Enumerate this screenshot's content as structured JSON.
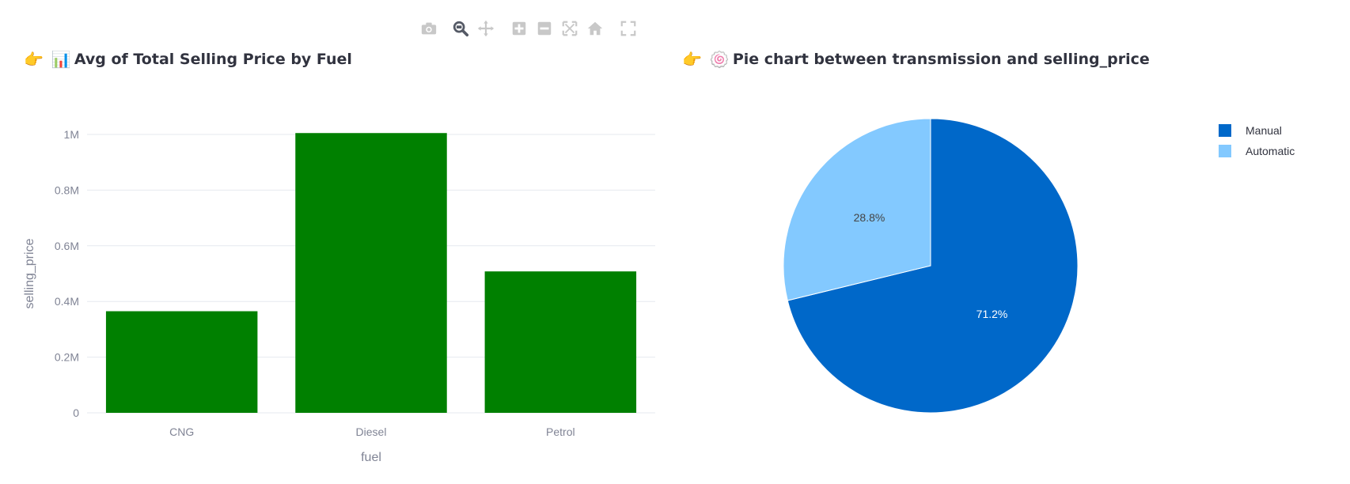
{
  "toolbar": {
    "icons": [
      "camera-icon",
      "zoom-icon",
      "pan-icon",
      "zoom-in-icon",
      "zoom-out-icon",
      "autoscale-icon",
      "reset-axes-icon",
      "fullscreen-icon"
    ]
  },
  "headings": {
    "bar": {
      "emoji": "👉",
      "icon": "📊",
      "text": "Avg of Total Selling Price by Fuel"
    },
    "pie": {
      "emoji": "👉",
      "icon": "🍥",
      "text": "Pie chart between transmission and selling_price"
    }
  },
  "colors": {
    "bar": "#008000",
    "manual": "#0068c9",
    "automatic": "#83c9ff",
    "grid": "#e6e9ef",
    "axis_text": "#808495",
    "heading": "#31333f"
  },
  "chart_data": [
    {
      "type": "bar",
      "title": "Avg of Total Selling Price by Fuel",
      "categories": [
        "CNG",
        "Diesel",
        "Petrol"
      ],
      "values": [
        365000,
        1005000,
        508000
      ],
      "xlabel": "fuel",
      "ylabel": "selling_price",
      "ylim": [
        0,
        1000000
      ],
      "yticks": [
        0,
        200000,
        400000,
        600000,
        800000,
        1000000
      ],
      "ytick_labels": [
        "0",
        "0.2M",
        "0.4M",
        "0.6M",
        "0.8M",
        "1M"
      ],
      "grid": true
    },
    {
      "type": "pie",
      "title": "Pie chart between transmission and selling_price",
      "labels": [
        "Manual",
        "Automatic"
      ],
      "values": [
        71.2,
        28.8
      ],
      "value_labels": [
        "71.2%",
        "28.8%"
      ],
      "legend": "top-right"
    }
  ]
}
